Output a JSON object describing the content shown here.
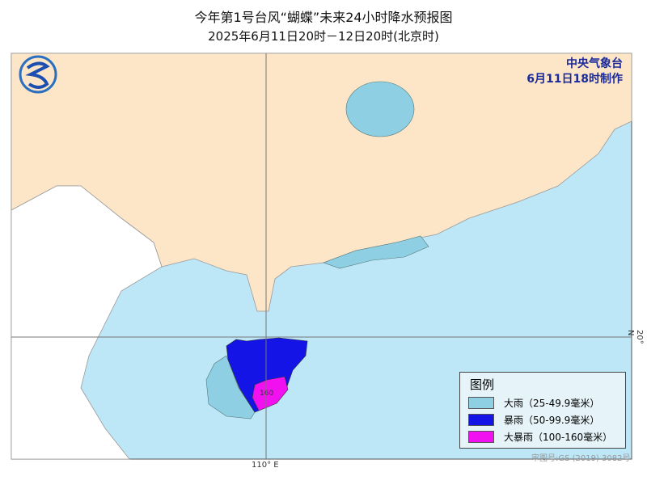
{
  "title": {
    "line1": "今年第1号台风“蝴蝶”未来24小时降水预报图",
    "line2": "2025年6月11日20时－12日20时(北京时)"
  },
  "agency": {
    "name": "中央气象台",
    "issued": "6月11日18时制作"
  },
  "legend": {
    "title": "图例",
    "items": [
      {
        "label": "大雨（25-49.9毫米）",
        "color": "#8ecfe3"
      },
      {
        "label": "暴雨（50-99.9毫米）",
        "color": "#1414e6"
      },
      {
        "label": "大暴雨（100-160毫米）",
        "color": "#f010f0"
      }
    ]
  },
  "map": {
    "max_label": "160",
    "lon_label": "110° E",
    "lat_label": "20° N",
    "approval": "审图号:GS (2019) 3082号",
    "colors": {
      "land": "#fde6c8",
      "sea": "#bde6f7",
      "foreign": "#ffffff"
    }
  }
}
